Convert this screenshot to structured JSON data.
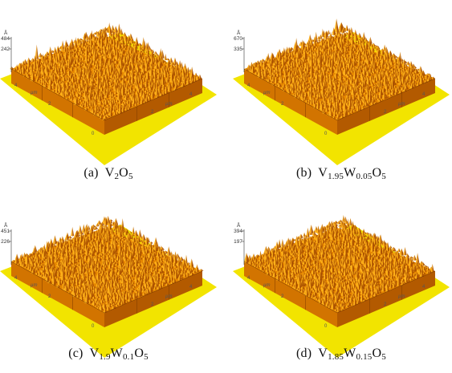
{
  "figure": {
    "panels": [
      {
        "id": "a",
        "label": "(a)",
        "formula": [
          {
            "t": "V",
            "sub": "2"
          },
          {
            "t": "O",
            "sub": "5"
          }
        ],
        "z_unit": "Å",
        "z_ticks": [
          "484",
          "242"
        ],
        "lateral_unit": "µm",
        "axis_ticks": [
          "4",
          "2",
          "0",
          "2",
          "4"
        ]
      },
      {
        "id": "b",
        "label": "(b)",
        "formula": [
          {
            "t": "V",
            "sub": "1.95"
          },
          {
            "t": "W",
            "sub": "0.05"
          },
          {
            "t": "O",
            "sub": "5"
          }
        ],
        "z_unit": "Å",
        "z_ticks": [
          "670",
          "335"
        ],
        "lateral_unit": "µm",
        "axis_ticks": [
          "4",
          "2",
          "0",
          "2",
          "4"
        ]
      },
      {
        "id": "c",
        "label": "(c)",
        "formula": [
          {
            "t": "V",
            "sub": "1.9"
          },
          {
            "t": "W",
            "sub": "0.1"
          },
          {
            "t": "O",
            "sub": "5"
          }
        ],
        "z_unit": "Å",
        "z_ticks": [
          "451",
          "226"
        ],
        "lateral_unit": "µm",
        "axis_ticks": [
          "4",
          "2",
          "0",
          "2",
          "4"
        ]
      },
      {
        "id": "d",
        "label": "(d)",
        "formula": [
          {
            "t": "V",
            "sub": "1.85"
          },
          {
            "t": "W",
            "sub": "0.15"
          },
          {
            "t": "O",
            "sub": "5"
          }
        ],
        "z_unit": "Å",
        "z_ticks": [
          "394",
          "197"
        ],
        "lateral_unit": "µm",
        "axis_ticks": [
          "4",
          "2",
          "0",
          "2",
          "4"
        ]
      }
    ],
    "colors": {
      "base_plane": "#f2e400",
      "surface_light": "#ffb21a",
      "surface_mid": "#e58600",
      "surface_dark": "#a85000",
      "wall_left": "#d27400",
      "wall_right": "#b35a00"
    }
  }
}
